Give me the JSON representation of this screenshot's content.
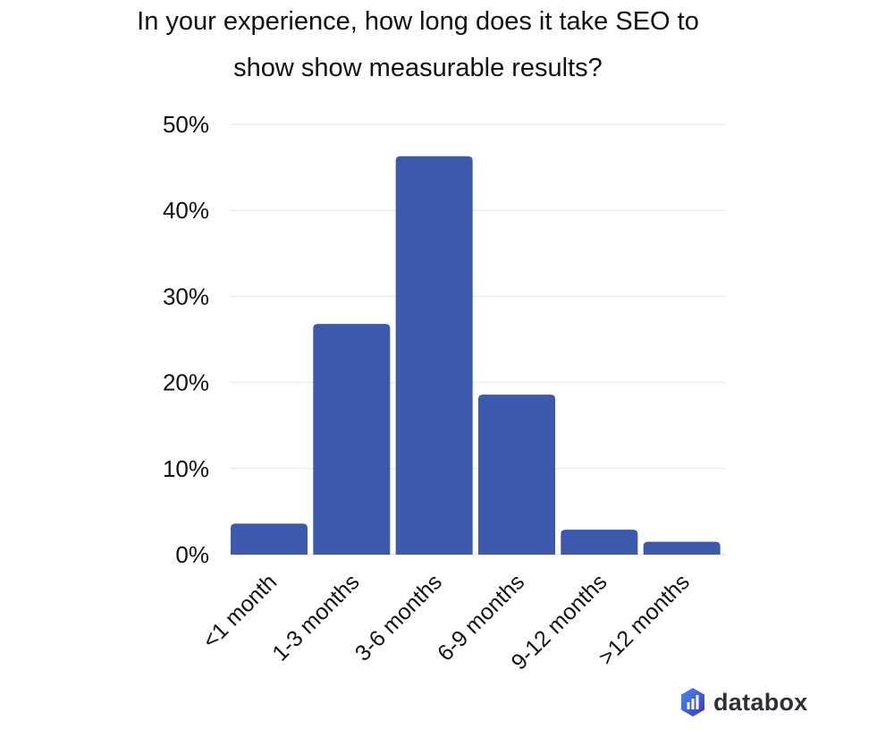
{
  "chart_data": {
    "type": "bar",
    "title": "In your experience, how long does it take SEO to show show measurable results?",
    "title_lines": [
      "In your experience, how long does it take SEO to",
      "show show measurable results?"
    ],
    "categories": [
      "<1 month",
      "1-3 months",
      "3-6 months",
      "6-9 months",
      "9-12 months",
      ">12 months"
    ],
    "values": [
      3.6,
      26.8,
      46.3,
      18.6,
      2.9,
      1.5
    ],
    "unit": "%",
    "xlabel": "",
    "ylabel": "",
    "ylim": [
      0,
      50
    ],
    "yticks": [
      "0%",
      "10%",
      "20%",
      "30%",
      "40%",
      "50%"
    ],
    "grid": true,
    "bar_color": "#3c59ab"
  },
  "brand": {
    "name": "databox",
    "icon": "databox-logo-icon"
  }
}
